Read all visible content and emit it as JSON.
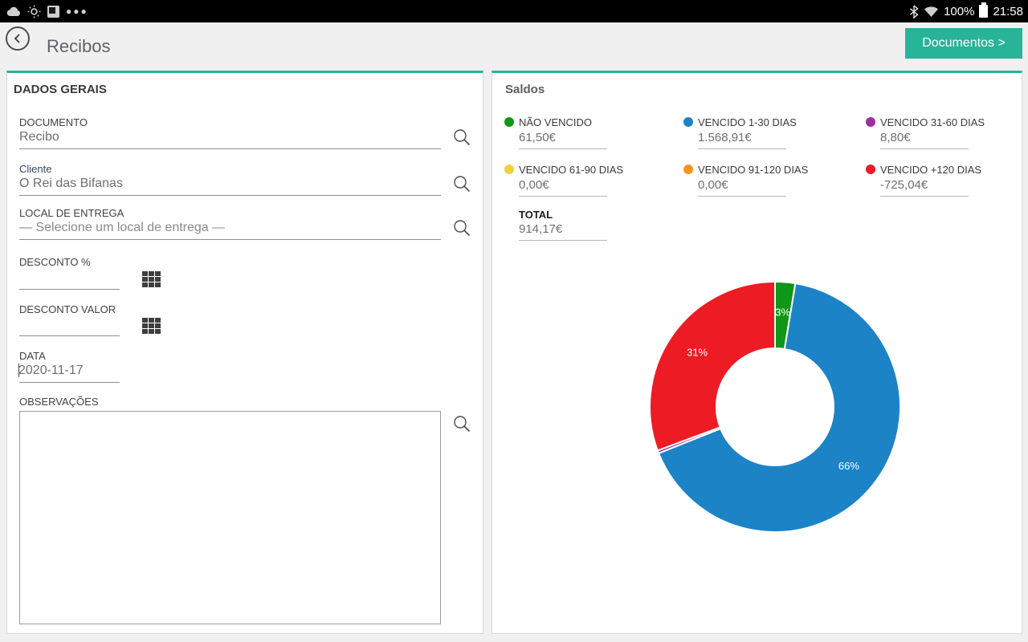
{
  "status_bar": {
    "time": "21:58",
    "battery": "100%",
    "left_icons": [
      "cloud-icon",
      "weather-icon",
      "flipboard-icon",
      "more-notifications-icon"
    ],
    "right_icons": [
      "bluetooth-icon",
      "wifi-icon",
      "battery-icon"
    ]
  },
  "header": {
    "title": "Recibos",
    "documents_button_label": "Documentos >"
  },
  "accent_color": "#28b498",
  "general": {
    "section_title": "DADOS GERAIS",
    "documento_label": "DOCUMENTO",
    "documento_value": "Recibo",
    "cliente_label": "Cliente",
    "cliente_value": "O Rei das Bifanas",
    "local_label": "LOCAL DE ENTREGA",
    "local_value": "— Selecione um local de entrega —",
    "desconto_pct_label": "DESCONTO %",
    "desconto_pct_value": "",
    "desconto_valor_label": "DESCONTO VALOR",
    "desconto_valor_value": "",
    "data_label": "DATA",
    "data_value": "2020-11-17",
    "observacoes_label": "OBSERVAÇÕES",
    "observacoes_value": ""
  },
  "saldos": {
    "title": "Saldos",
    "items": [
      {
        "label": "NÃO VENCIDO",
        "value": "61,50€",
        "color": "#109618"
      },
      {
        "label": "VENCIDO 1-30 DIAS",
        "value": "1.568,91€",
        "color": "#1c83c6"
      },
      {
        "label": "VENCIDO 31-60 DIAS",
        "value": "8,80€",
        "color": "#9b30a0"
      },
      {
        "label": "VENCIDO 61-90 DIAS",
        "value": "0,00€",
        "color": "#f0d043"
      },
      {
        "label": "VENCIDO 91-120 DIAS",
        "value": "0,00€",
        "color": "#f7941e"
      },
      {
        "label": "VENCIDO +120 DIAS",
        "value": "-725,04€",
        "color": "#ed1c24"
      }
    ],
    "total_label": "TOTAL",
    "total_value": "914,17€"
  },
  "chart_data": {
    "type": "pie",
    "donut": true,
    "title": "Saldos",
    "categories": [
      "NÃO VENCIDO",
      "VENCIDO 1-30 DIAS",
      "VENCIDO 31-60 DIAS",
      "VENCIDO 61-90 DIAS",
      "VENCIDO 91-120 DIAS",
      "VENCIDO +120 DIAS"
    ],
    "values": [
      61.5,
      1568.91,
      8.8,
      0.0,
      0.0,
      725.04
    ],
    "display_values": [
      "61,50€",
      "1.568,91€",
      "8,80€",
      "0,00€",
      "0,00€",
      "-725,04€"
    ],
    "percent_labels": [
      "3%",
      "66%",
      "",
      "",
      "",
      "31%"
    ],
    "colors": [
      "#109618",
      "#1c83c6",
      "#9b30a0",
      "#f0d043",
      "#f7941e",
      "#ed1c24"
    ],
    "total_label": "TOTAL",
    "total_value": "914,17€",
    "legend_position": "top",
    "start_angle_deg": 0,
    "direction": "clockwise"
  }
}
